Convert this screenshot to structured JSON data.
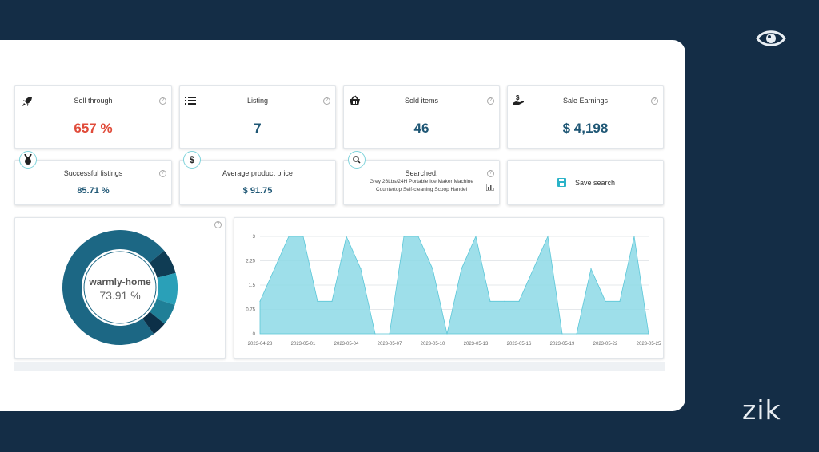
{
  "brand": "zik",
  "cards_row1": [
    {
      "title": "Sell through",
      "value": "657 %",
      "value_color": "#e04b3a",
      "icon": "rocket-icon"
    },
    {
      "title": "Listing",
      "value": "7",
      "value_color": "#1f5775",
      "icon": "list-icon"
    },
    {
      "title": "Sold items",
      "value": "46",
      "value_color": "#1f5775",
      "icon": "basket-icon"
    },
    {
      "title": "Sale Earnings",
      "value": "$ 4,198",
      "value_color": "#1f5775",
      "icon": "hand-dollar-icon"
    }
  ],
  "cards_row2": {
    "successful": {
      "title": "Successful listings",
      "value": "85.71 %",
      "icon": "medal-icon"
    },
    "avg_price": {
      "title": "Average product price",
      "value": "$ 91.75",
      "icon": "dollar-icon"
    },
    "searched": {
      "title": "Searched:",
      "line1": "Grey 26Lbs/24H Portable Ice Maker Machine",
      "line2": "Countertop Self-cleaning Scoop Handel",
      "icon": "search-icon"
    },
    "save": {
      "label": "Save search",
      "icon": "save-icon"
    }
  },
  "donut": {
    "store": "warmly-home",
    "percent": "73.91 %",
    "share": 0.7391
  },
  "colors": {
    "accent": "#1f5775",
    "red": "#e04b3a",
    "area": "#8dd9e6",
    "area_line": "#5cc7d8",
    "bg": "#142d46"
  },
  "chart_data": {
    "type": "area",
    "x": [
      "2023-04-28",
      "2023-04-29",
      "2023-04-30",
      "2023-05-01",
      "2023-05-02",
      "2023-05-03",
      "2023-05-04",
      "2023-05-05",
      "2023-05-06",
      "2023-05-07",
      "2023-05-08",
      "2023-05-09",
      "2023-05-10",
      "2023-05-11",
      "2023-05-12",
      "2023-05-13",
      "2023-05-14",
      "2023-05-15",
      "2023-05-16",
      "2023-05-17",
      "2023-05-18",
      "2023-05-19",
      "2023-05-20",
      "2023-05-21",
      "2023-05-22",
      "2023-05-23",
      "2023-05-24",
      "2023-05-25"
    ],
    "y": [
      1,
      2,
      3,
      3,
      1,
      1,
      3,
      2,
      0,
      0,
      3,
      3,
      2,
      0,
      2,
      3,
      1,
      1,
      1,
      2,
      3,
      0,
      0,
      2,
      1,
      1,
      3,
      0
    ],
    "xticks": [
      "2023-04-28",
      "2023-05-01",
      "2023-05-04",
      "2023-05-07",
      "2023-05-10",
      "2023-05-13",
      "2023-05-16",
      "2023-05-19",
      "2023-05-22",
      "2023-05-25"
    ],
    "yticks": [
      "3",
      "2.25",
      "1.5",
      "0.75",
      "0"
    ],
    "ylim": [
      0,
      3
    ]
  }
}
